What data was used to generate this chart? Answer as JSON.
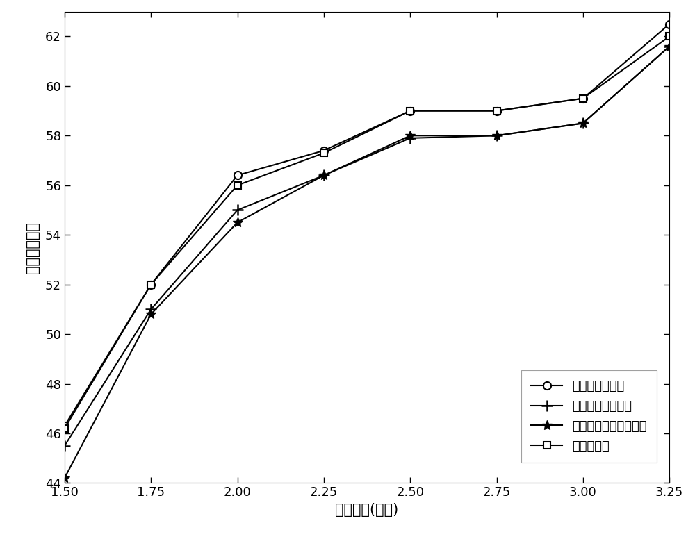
{
  "x": [
    1.5,
    1.75,
    2.0,
    2.25,
    2.5,
    2.75,
    3.0,
    3.25
  ],
  "epidemic": [
    46.3,
    52.0,
    56.4,
    57.4,
    59.0,
    59.0,
    59.5,
    62.5
  ],
  "spray_wait": [
    45.5,
    51.0,
    55.0,
    56.4,
    57.9,
    58.0,
    58.5,
    61.6
  ],
  "social": [
    44.2,
    50.8,
    54.5,
    56.4,
    58.0,
    58.0,
    58.5,
    61.6
  ],
  "proposed": [
    46.2,
    52.0,
    56.0,
    57.3,
    59.0,
    59.0,
    59.5,
    62.0
  ],
  "xlabel": "生存时间(小时)",
  "ylabel": "传输率（％）",
  "legend_epidemic": "传染病路由方法",
  "legend_spray": "噴射等待路由方法",
  "legend_social": "基于社会群体路由方法",
  "legend_proposed": "本发明方法",
  "xlim": [
    1.5,
    3.25
  ],
  "ylim": [
    44,
    63
  ],
  "xticks": [
    1.5,
    1.75,
    2.0,
    2.25,
    2.5,
    2.75,
    3.0,
    3.25
  ],
  "yticks": [
    44,
    46,
    48,
    50,
    52,
    54,
    56,
    58,
    60,
    62
  ],
  "bg_color": "#ffffff",
  "tick_fontsize": 13,
  "label_fontsize": 15,
  "legend_fontsize": 13,
  "linewidth": 1.5,
  "markersize": 8
}
